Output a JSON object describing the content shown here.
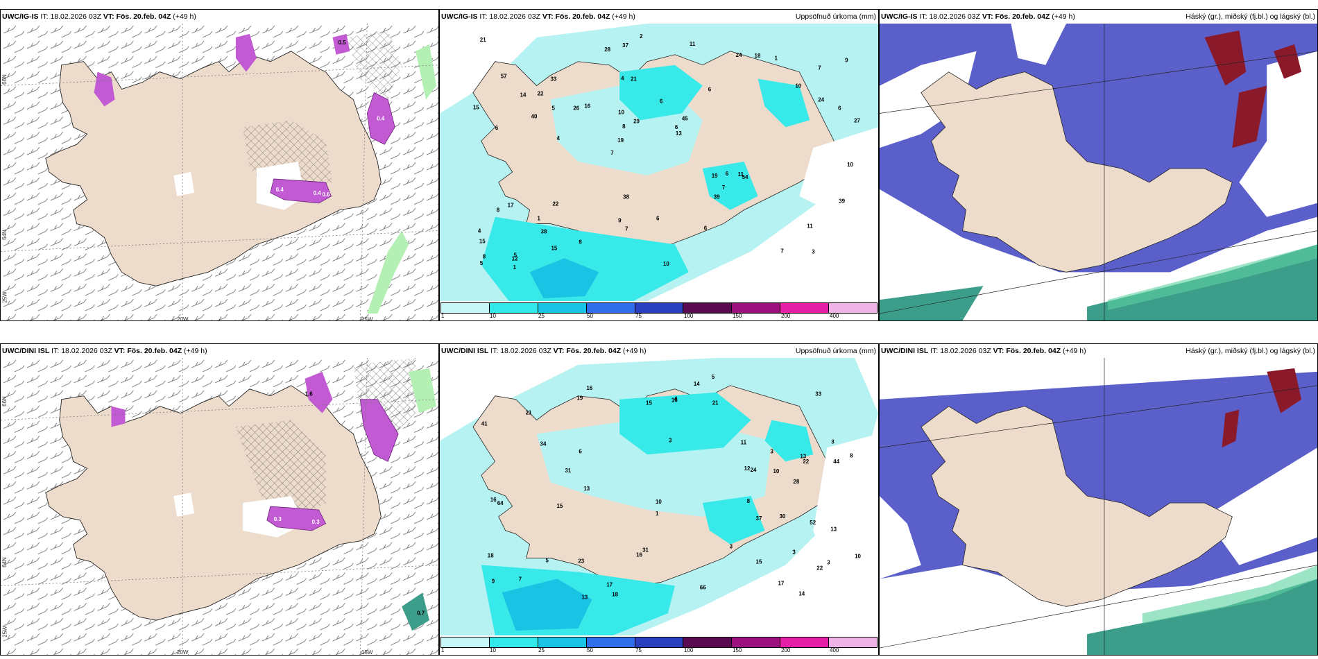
{
  "colors": {
    "land": "#eddccb",
    "sea_cyan_light": "#b6f2f2",
    "sea_cyan": "#37e9e9",
    "blue_cloud": "#5b5fc9",
    "dark_red": "#8a1a2a",
    "magenta": "#c25bd3",
    "green": "#3c9e8a"
  },
  "panels": {
    "top_left": {
      "model": "UWC/IG-IS",
      "it_label": "IT:",
      "it": "18.02.2026 03Z",
      "vt_label": "VT:",
      "vt": "Fös. 20.feb. 04Z",
      "lead": "(+49 h)"
    },
    "top_mid": {
      "model": "UWC/IG-IS",
      "it_label": "IT:",
      "it": "18.02.2026 03Z",
      "vt_label": "VT:",
      "vt": "Fös. 20.feb. 04Z",
      "lead": "(+49 h)",
      "right": "Uppsöfnuð úrkoma (mm)"
    },
    "top_right": {
      "model": "UWC/IG-IS",
      "it_label": "IT:",
      "it": "18.02.2026 03Z",
      "vt_label": "VT:",
      "vt": "Fös. 20.feb. 04Z",
      "lead": "(+49 h)",
      "right": "Háský (gr.), miðský (fj.bl.) og lágský (bl.)"
    },
    "bottom_left": {
      "model": "UWC/DINI ISL",
      "it_label": "IT:",
      "it": "18.02.2026 03Z",
      "vt_label": "VT:",
      "vt": "Fös. 20.feb. 04Z",
      "lead": "(+49 h)"
    },
    "bottom_mid": {
      "model": "UWC/DINI ISL",
      "it_label": "IT:",
      "it": "18.02.2026 03Z",
      "vt_label": "VT:",
      "vt": "Fös. 20.feb. 04Z",
      "lead": "(+49 h)",
      "right": "Uppsöfnuð úrkoma (mm)"
    },
    "bottom_right": {
      "model": "UWC/DINI ISL",
      "it_label": "IT:",
      "it": "18.02.2026 03Z",
      "vt_label": "VT:",
      "vt": "Fös. 20.feb. 04Z",
      "lead": "(+49 h)",
      "right": "Háský (gr.), miðský (fj.bl.) og lágský (bl.)"
    }
  },
  "grid_labels": {
    "lat_66": "66N",
    "lat_64": "64N",
    "lat_25w": "25W",
    "lon_20w": "20W",
    "lon_15w": "15W"
  },
  "colorbar": {
    "ticks": [
      "1",
      "10",
      "25",
      "50",
      "75",
      "100",
      "150",
      "200",
      "400"
    ],
    "colors": [
      "#c8f7f7",
      "#33e8e8",
      "#19c3e3",
      "#2f6ee8",
      "#2a3fc0",
      "#5a0a50",
      "#9b0f7e",
      "#e51fa6",
      "#f0b3e8"
    ]
  },
  "precip_top": [
    "3",
    "6",
    "7",
    "7",
    "6",
    "5",
    "4",
    "6",
    "17",
    "16",
    "15",
    "38",
    "21",
    "45",
    "54",
    "57",
    "37",
    "27",
    "19",
    "24",
    "19",
    "9",
    "8",
    "33",
    "24",
    "22",
    "7",
    "11",
    "11",
    "10",
    "26",
    "40",
    "39",
    "15",
    "6",
    "6",
    "8",
    "7",
    "13",
    "8",
    "10",
    "9",
    "7",
    "6",
    "1",
    "1",
    "5",
    "6",
    "1",
    "2",
    "4",
    "15",
    "22",
    "18",
    "12",
    "11",
    "28",
    "29",
    "39",
    "38",
    "8",
    "6",
    "5",
    "4",
    "21",
    "14",
    "10",
    "10"
  ],
  "precip_bottom": [
    "3",
    "3",
    "3",
    "3",
    "9",
    "16",
    "13",
    "23",
    "33",
    "34",
    "44",
    "41",
    "28",
    "18",
    "18",
    "21",
    "22",
    "19",
    "31",
    "22",
    "16",
    "64",
    "66",
    "12",
    "17",
    "16",
    "14",
    "21",
    "11",
    "10",
    "15",
    "15",
    "13",
    "10",
    "52",
    "17",
    "24",
    "15",
    "14",
    "13",
    "30",
    "10",
    "16",
    "31",
    "13",
    "37",
    "7",
    "5",
    "6",
    "3",
    "5",
    "1",
    "4",
    "8",
    "3",
    "8"
  ],
  "snow_top": [
    "0.4",
    "0.4",
    "0.5",
    "0.4",
    "0.6"
  ],
  "snow_bottom": [
    "1.6",
    "0.3",
    "0.3",
    "0.7"
  ]
}
